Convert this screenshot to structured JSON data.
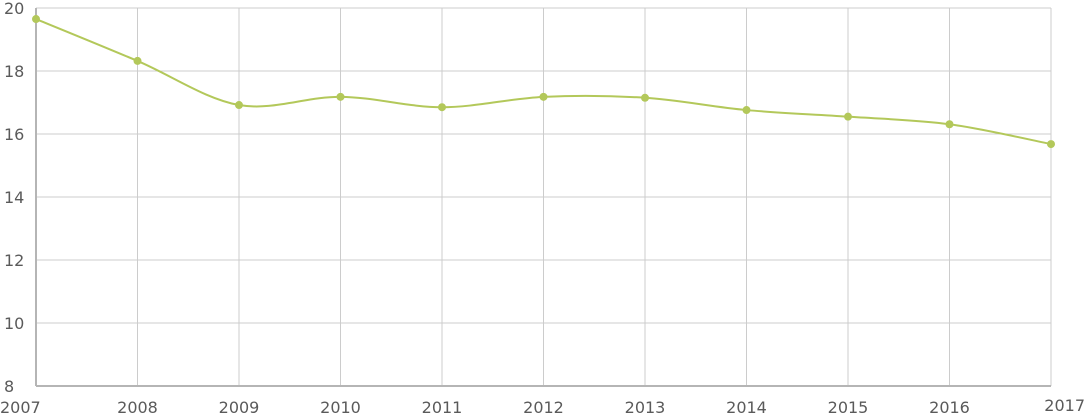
{
  "chart_data": {
    "type": "line",
    "title": "",
    "xlabel": "",
    "ylabel": "",
    "x": [
      "2007",
      "2008",
      "2009",
      "2010",
      "2011",
      "2012",
      "2013",
      "2014",
      "2015",
      "2016",
      "2017"
    ],
    "series": [
      {
        "values": [
          19.65,
          18.32,
          16.92,
          17.18,
          16.85,
          17.18,
          17.15,
          16.76,
          16.55,
          16.31,
          15.68
        ]
      }
    ],
    "ylim": [
      8,
      20
    ],
    "yticks": [
      "8",
      "10",
      "12",
      "14",
      "16",
      "18",
      "20"
    ],
    "grid": true,
    "legend": "none",
    "smooth": true,
    "colors": {
      "series": "#b3c85a",
      "grid": "#cccccc",
      "axis": "#b5b5b5",
      "text": "#5a5a5a"
    }
  }
}
